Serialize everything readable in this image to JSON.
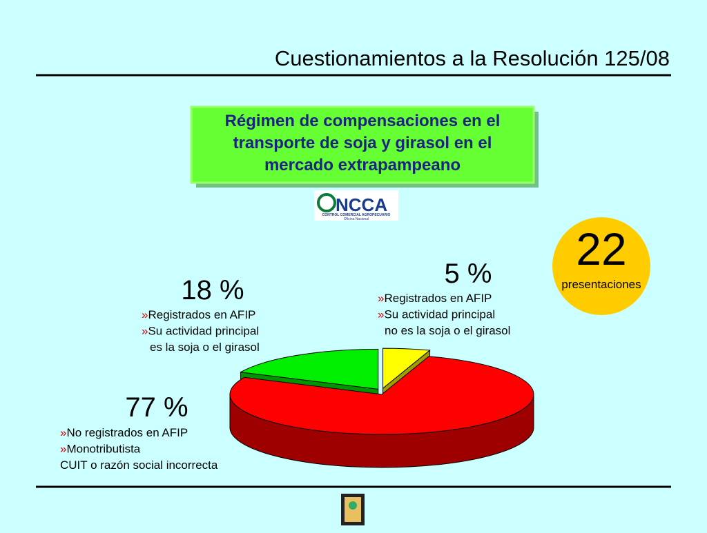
{
  "chart_data": {
    "type": "pie",
    "title": "Cuestionamientos a la Resolución 125/08",
    "subtitle": "Régimen de compensaciones en el transporte de soja y girasol en el mercado extrapampeano",
    "values": [
      5,
      77,
      18
    ],
    "value_labels": [
      "5 %",
      "77 %",
      "18 %"
    ],
    "colors": [
      "#ffff00",
      "#ff0000",
      "#00ee00"
    ],
    "bullet": "»",
    "descriptions": [
      [
        "Registrados en AFIP",
        "Su actividad principal",
        "no es la soja o el girasol"
      ],
      [
        "No registrados en AFIP",
        "Monotributista",
        "CUIT o razón social incorrecta"
      ],
      [
        "Registrados en AFIP",
        "Su actividad principal",
        "es la soja o el girasol"
      ]
    ]
  },
  "callout": {
    "count": "22",
    "label": "presentaciones"
  },
  "logo": {
    "name": "NCCA",
    "line1": "CONTROL COMERCIAL AGROPECUARIO",
    "line2": "Oficina Nacional"
  }
}
